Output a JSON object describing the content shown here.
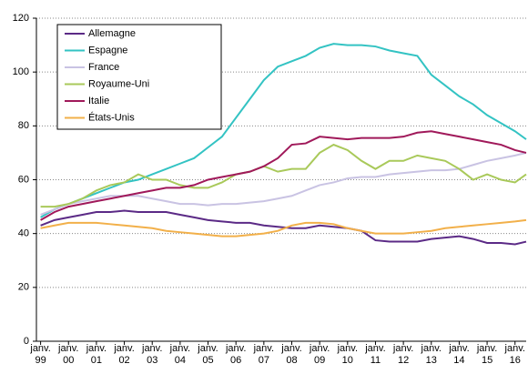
{
  "chart_data": {
    "type": "line",
    "x": [
      1999,
      1999.5,
      2000,
      2000.5,
      2001,
      2001.5,
      2002,
      2002.5,
      2003,
      2003.5,
      2004,
      2004.5,
      2005,
      2005.5,
      2006,
      2006.5,
      2007,
      2007.5,
      2008,
      2008.5,
      2009,
      2009.5,
      2010,
      2010.5,
      2011,
      2011.5,
      2012,
      2012.5,
      2013,
      2013.5,
      2014,
      2014.5,
      2015,
      2015.5,
      2016,
      2016.4
    ],
    "series": [
      {
        "name": "Allemagne",
        "color": "#5b2a86",
        "values": [
          43,
          45,
          46,
          47,
          48,
          48,
          48.5,
          48,
          48,
          48,
          47,
          46,
          45,
          44.5,
          44,
          44,
          43,
          42.5,
          42,
          42,
          43,
          42.5,
          42,
          41,
          37.5,
          37,
          37,
          37,
          38,
          38.5,
          39,
          38,
          36.5,
          36.5,
          36,
          37
        ]
      },
      {
        "name": "Espagne",
        "color": "#33c3c3",
        "values": [
          46,
          49,
          51,
          53,
          55,
          57,
          59,
          60,
          62,
          64,
          66,
          68,
          72,
          76,
          83,
          90,
          97,
          102,
          104,
          106,
          109,
          110.5,
          110,
          110,
          109.5,
          108,
          107,
          106,
          99,
          95,
          91,
          88,
          84,
          81,
          78,
          75
        ]
      },
      {
        "name": "France",
        "color": "#c9c3e3",
        "values": [
          47,
          49,
          51,
          52,
          53,
          54,
          54,
          54,
          53,
          52,
          51,
          51,
          50.5,
          51,
          51,
          51.5,
          52,
          53,
          54,
          56,
          58,
          59,
          60.5,
          61,
          61,
          62,
          62.5,
          63,
          63.5,
          63.5,
          64,
          65.5,
          67,
          68,
          69,
          70
        ]
      },
      {
        "name": "Royaume-Uni",
        "color": "#a9c95a",
        "values": [
          50,
          50,
          51,
          53,
          56,
          58,
          59,
          62,
          60,
          60,
          58,
          57,
          57,
          59,
          62,
          63,
          65,
          63,
          64,
          64,
          70,
          73,
          71,
          67,
          64,
          67,
          67,
          69,
          68,
          67,
          64,
          60,
          62,
          60,
          59,
          62
        ]
      },
      {
        "name": "Italie",
        "color": "#a0195a",
        "values": [
          45,
          48,
          50,
          51,
          52,
          53,
          54,
          55,
          56,
          57,
          57,
          58,
          60,
          61,
          62,
          63,
          65,
          68,
          73,
          73.5,
          76,
          75.5,
          75,
          75.5,
          75.5,
          75.5,
          76,
          77.5,
          78,
          77,
          76,
          75,
          74,
          73,
          71,
          70
        ]
      },
      {
        "name": "États-Unis",
        "color": "#f2b04a",
        "values": [
          42,
          43,
          44,
          44,
          44,
          43.5,
          43,
          42.5,
          42,
          41,
          40.5,
          40,
          39.5,
          39,
          39,
          39.5,
          40,
          41,
          43,
          44,
          44,
          43.5,
          42,
          41,
          40,
          40,
          40,
          40.5,
          41,
          42,
          42.5,
          43,
          43.5,
          44,
          44.5,
          45
        ]
      }
    ],
    "xlim": [
      1998.85,
      2016.4
    ],
    "xticks": [
      {
        "value": 1999,
        "label": "janv. 99"
      },
      {
        "value": 2000,
        "label": "janv. 00"
      },
      {
        "value": 2001,
        "label": "janv. 01"
      },
      {
        "value": 2002,
        "label": "janv. 02"
      },
      {
        "value": 2003,
        "label": "janv. 03"
      },
      {
        "value": 2004,
        "label": "janv. 04"
      },
      {
        "value": 2005,
        "label": "janv. 05"
      },
      {
        "value": 2006,
        "label": "janv. 06"
      },
      {
        "value": 2007,
        "label": "janv. 07"
      },
      {
        "value": 2008,
        "label": "janv. 08"
      },
      {
        "value": 2009,
        "label": "janv. 09"
      },
      {
        "value": 2010,
        "label": "janv. 10"
      },
      {
        "value": 2011,
        "label": "janv. 11"
      },
      {
        "value": 2012,
        "label": "janv. 12"
      },
      {
        "value": 2013,
        "label": "janv. 13"
      },
      {
        "value": 2014,
        "label": "janv. 14"
      },
      {
        "value": 2015,
        "label": "janv. 15"
      },
      {
        "value": 2016,
        "label": "janv. 16"
      }
    ],
    "ylim": [
      0,
      120
    ],
    "yticks": [
      0,
      20,
      40,
      60,
      80,
      100,
      120
    ],
    "grid": true,
    "legend": "upper left"
  }
}
